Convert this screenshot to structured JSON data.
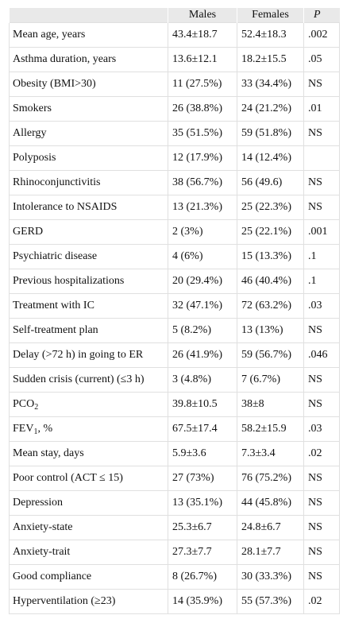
{
  "header": {
    "col0": "",
    "col1": "Males",
    "col2": "Females",
    "col3": "P"
  },
  "rows": [
    {
      "label": "Mean age, years",
      "males": "43.4±18.7",
      "females": "52.4±18.3",
      "p": ".002"
    },
    {
      "label": "Asthma duration, years",
      "males": "13.6±12.1",
      "females": "18.2±15.5",
      "p": ".05"
    },
    {
      "label": "Obesity (BMI>30)",
      "males": "11 (27.5%)",
      "females": "33 (34.4%)",
      "p": "NS"
    },
    {
      "label": "Smokers",
      "males": "26 (38.8%)",
      "females": "24 (21.2%)",
      "p": ".01"
    },
    {
      "label": "Allergy",
      "males": "35 (51.5%)",
      "females": "59 (51.8%)",
      "p": "NS"
    },
    {
      "label": "Polyposis",
      "males": "12 (17.9%)",
      "females": "14 (12.4%)",
      "p": ""
    },
    {
      "label": "Rhinoconjunctivitis",
      "males": "38 (56.7%)",
      "females": "56 (49.6)",
      "p": "NS"
    },
    {
      "label": "Intolerance to NSAIDS",
      "males": "13 (21.3%)",
      "females": "25 (22.3%)",
      "p": "NS"
    },
    {
      "label": "GERD",
      "males": "2 (3%)",
      "females": "25 (22.1%)",
      "p": ".001"
    },
    {
      "label": "Psychiatric disease",
      "males": "4 (6%)",
      "females": "15 (13.3%)",
      "p": ".1"
    },
    {
      "label": "Previous hospitalizations",
      "males": "20 (29.4%)",
      "females": "46 (40.4%)",
      "p": ".1"
    },
    {
      "label": "Treatment with IC",
      "males": "32 (47.1%)",
      "females": "72 (63.2%)",
      "p": ".03"
    },
    {
      "label": "Self-treatment plan",
      "males": "5 (8.2%)",
      "females": "13 (13%)",
      "p": "NS"
    },
    {
      "label": "Delay (>72 h) in going to ER",
      "males": "26 (41.9%)",
      "females": "59 (56.7%)",
      "p": ".046"
    },
    {
      "label": "Sudden crisis (current) (≤3 h)",
      "males": "3 (4.8%)",
      "females": "7 (6.7%)",
      "p": "NS"
    },
    {
      "label": "PCO",
      "sub": "2",
      "males": "39.8±10.5",
      "females": "38±8",
      "p": "NS"
    },
    {
      "label": "FEV",
      "sub": "1",
      "suffix": ", %",
      "males": "67.5±17.4",
      "females": "58.2±15.9",
      "p": ".03"
    },
    {
      "label": "Mean stay, days",
      "males": "5.9±3.6",
      "females": "7.3±3.4",
      "p": ".02"
    },
    {
      "label": "Poor control (ACT ≤ 15)",
      "males": "27 (73%)",
      "females": "76 (75.2%)",
      "p": "NS"
    },
    {
      "label": "Depression",
      "males": "13 (35.1%)",
      "females": "44 (45.8%)",
      "p": "NS"
    },
    {
      "label": "Anxiety-state",
      "males": "25.3±6.7",
      "females": "24.8±6.7",
      "p": "NS"
    },
    {
      "label": "Anxiety-trait",
      "males": "27.3±7.7",
      "females": "28.1±7.7",
      "p": "NS"
    },
    {
      "label": "Good compliance",
      "males": "8 (26.7%)",
      "females": "30 (33.3%)",
      "p": "NS"
    },
    {
      "label": "Hyperventilation (≥23)",
      "males": "14 (35.9%)",
      "females": "55 (57.3%)",
      "p": ".02"
    }
  ]
}
